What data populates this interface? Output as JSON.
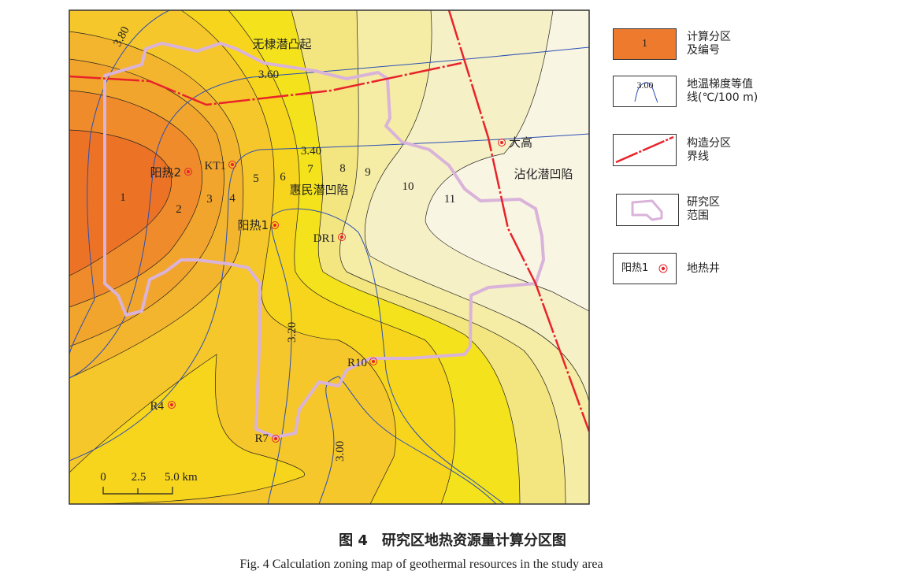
{
  "map": {
    "zone_colors": [
      "#EC7326",
      "#EF8B2A",
      "#F2A52D",
      "#F4B52E",
      "#F6C72A",
      "#F7D51C",
      "#F3E21C",
      "#F3E680",
      "#F5EDA5",
      "#F6F0C6",
      "#F9F5E3"
    ],
    "zone_labels": [
      "1",
      "2",
      "3",
      "4",
      "5",
      "6",
      "7",
      "8",
      "9",
      "10",
      "11"
    ],
    "regions": {
      "wudi": "无棣潜凸起",
      "huimin": "惠民潜凹陷",
      "zhanhua": "沾化潜凹陷"
    },
    "isolines": {
      "c380": "3.80",
      "c360": "3.60",
      "c340": "3.40",
      "c320": "3.20",
      "c300": "3.00"
    },
    "wells": {
      "yangre2": "阳热2",
      "kt1": "KT1",
      "yangre1": "阳热1",
      "dr1": "DR1",
      "dagao": "大高",
      "r10": "R10",
      "r4": "R4",
      "r7": "R7"
    },
    "scale": {
      "s0": "0",
      "s1": "2.5",
      "s2": "5.0 km"
    },
    "colors": {
      "fault": "#E8232A",
      "isoline": "#2B4FB5",
      "boundary": "#D9B3D9",
      "well": "#E8232A"
    }
  },
  "legend": {
    "zone_sample": "1",
    "zone_label_1": "计算分区",
    "zone_label_2": "及编号",
    "isoline_sample": "3.00",
    "isoline_label_1": "地温梯度等值",
    "isoline_label_2": "线(℃/100 m)",
    "fault_label_1": "构造分区",
    "fault_label_2": "界线",
    "area_label_1": "研究区",
    "area_label_2": "范围",
    "well_sample": "阳热1",
    "well_label": "地热井"
  },
  "caption": {
    "cn": "图 4　研究区地热资源量计算分区图",
    "en": "Fig. 4   Calculation zoning map of geothermal resources in the study area"
  }
}
